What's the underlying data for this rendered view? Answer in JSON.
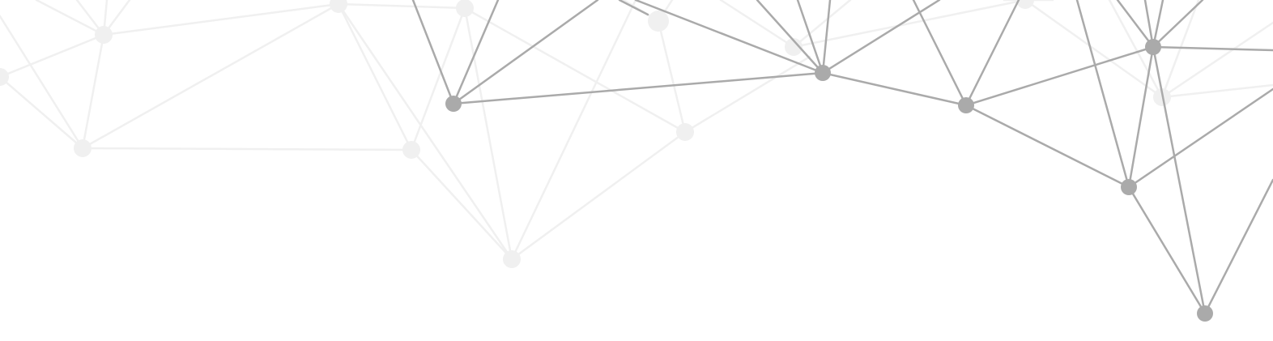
{
  "graphic": {
    "name": "network-graph-decoration",
    "colors": {
      "dark": "#aaaaaa",
      "faint": "#f0f0f0",
      "background": "#ffffff"
    }
  }
}
